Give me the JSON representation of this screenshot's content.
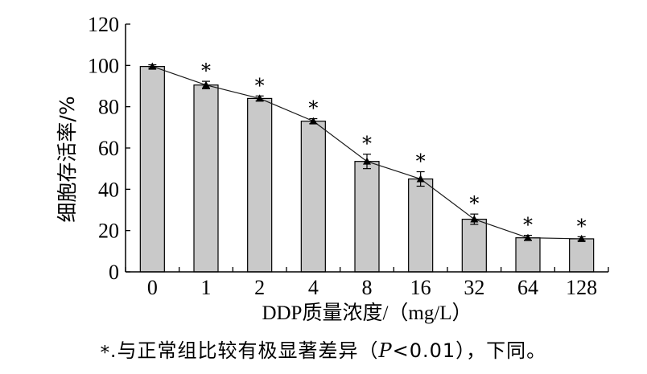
{
  "chart_data": {
    "type": "bar",
    "categories": [
      "0",
      "1",
      "2",
      "4",
      "8",
      "16",
      "32",
      "64",
      "128"
    ],
    "values": [
      99.5,
      90.5,
      84,
      73,
      53.5,
      45,
      25.5,
      16.5,
      16
    ],
    "errors": [
      0.8,
      1.8,
      1.2,
      1.2,
      3.5,
      3.5,
      2.5,
      1.2,
      1.0
    ],
    "significance": [
      "",
      "*",
      "*",
      "*",
      "*",
      "*",
      "*",
      "*",
      "*"
    ],
    "line_overlay": true,
    "xlabel": "DDP质量浓度/（mg/L）",
    "ylabel": "细胞存活率/%",
    "ylim": [
      0,
      120
    ],
    "yticks": [
      0,
      20,
      40,
      60,
      80,
      100,
      120
    ],
    "grid": false,
    "bar_color": "#c9c9c9",
    "line_color": "#1a1a1a"
  },
  "caption": {
    "marker": "*",
    "text_before": ".与正常组比较有极显著差异（",
    "p_symbol": "P",
    "text_after": "<0.01），下同。"
  }
}
